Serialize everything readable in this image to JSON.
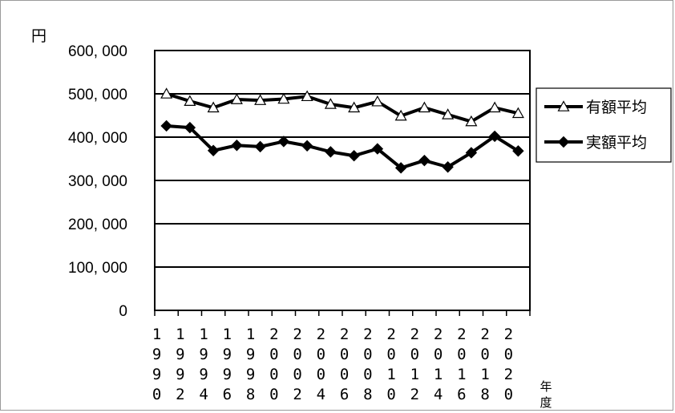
{
  "chart_data": {
    "type": "line",
    "title": "",
    "ylabel": "円",
    "xlabel": "年度",
    "ylim": [
      0,
      600000
    ],
    "yticks": [
      0,
      100000,
      200000,
      300000,
      400000,
      500000,
      600000
    ],
    "ytick_labels": [
      "0",
      "100, 000",
      "200, 000",
      "300, 000",
      "400, 000",
      "500, 000",
      "600, 000"
    ],
    "categories": [
      "1990",
      "1992",
      "1994",
      "1996",
      "1998",
      "2000",
      "2002",
      "2004",
      "2006",
      "2008",
      "2010",
      "2012",
      "2014",
      "2016",
      "2018",
      "2020"
    ],
    "series": [
      {
        "name": "有額平均",
        "marker": "open-triangle",
        "color": "#000000",
        "values": [
          500000,
          483000,
          468000,
          487000,
          485000,
          488000,
          494000,
          476000,
          468000,
          482000,
          449000,
          468000,
          452000,
          436000,
          468000,
          455000
        ]
      },
      {
        "name": "実額平均",
        "marker": "filled-diamond",
        "color": "#000000",
        "values": [
          426000,
          422000,
          369000,
          381000,
          378000,
          390000,
          380000,
          366000,
          357000,
          373000,
          329000,
          346000,
          331000,
          364000,
          402000,
          368000
        ]
      }
    ],
    "grid": true,
    "legend_position": "right"
  }
}
